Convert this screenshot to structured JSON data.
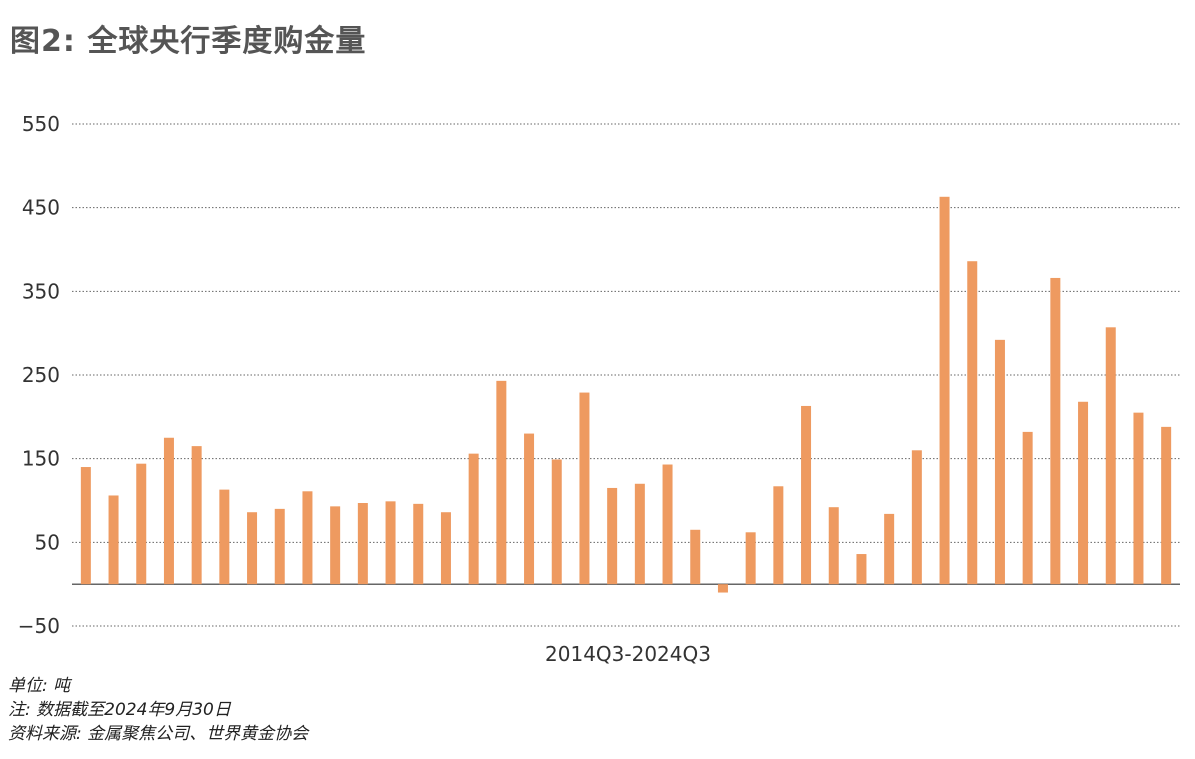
{
  "title": "图2: 全球央行季度购金量",
  "notes": {
    "unit": "单位: 吨",
    "note": "注: 数据截至2024年9月30日",
    "source": "资料来源: 金属聚焦公司、世界黄金协会"
  },
  "chart_data": {
    "type": "bar",
    "xlabel": "2014Q3-2024Q3",
    "ylabel": "",
    "ylim": [
      -50,
      550
    ],
    "yticks": [
      -50,
      50,
      150,
      250,
      350,
      450,
      550
    ],
    "grid": "horizontal dotted",
    "bar_color": "#ee9a60",
    "values": [
      140,
      106,
      144,
      175,
      165,
      113,
      86,
      90,
      111,
      93,
      97,
      99,
      96,
      86,
      156,
      243,
      180,
      149,
      229,
      115,
      120,
      143,
      65,
      -10,
      62,
      117,
      213,
      92,
      36,
      84,
      160,
      463,
      386,
      292,
      182,
      366,
      218,
      307,
      205,
      188
    ]
  }
}
